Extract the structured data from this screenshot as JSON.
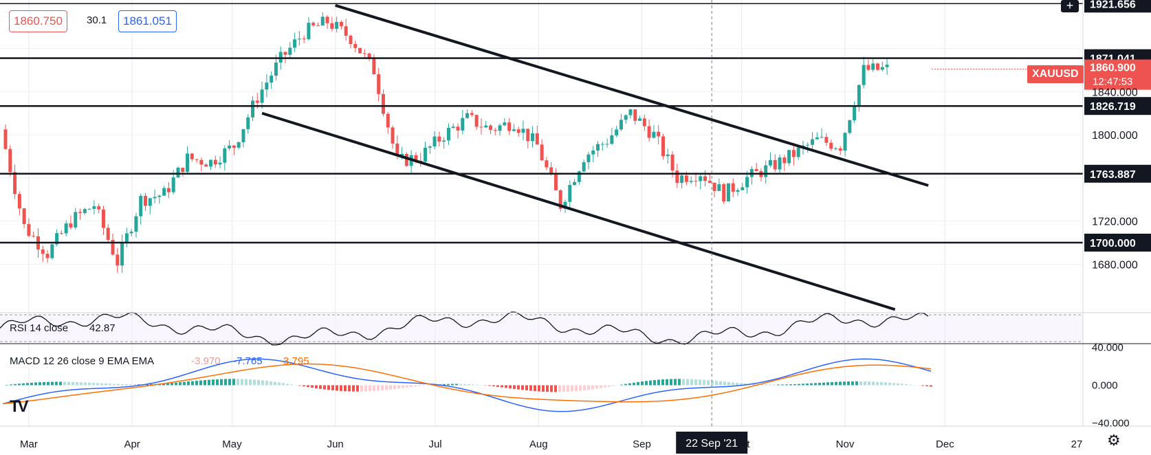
{
  "legend": {
    "bid": "1860.750",
    "spread": "30.1",
    "ask": "1861.051"
  },
  "symbol_badge": "XAUUSD",
  "last_price": "1860.900",
  "countdown": "12:47:53",
  "crosshair_date": "22 Sep '21",
  "rsi_label": "RSI 14 close",
  "rsi_value": "42.87",
  "macd": {
    "label": "MACD 12 26 close 9 EMA EMA",
    "hist": "-3.970",
    "macd": "-7.765",
    "signal": "-3.795"
  },
  "colors": {
    "up": "#26a69a",
    "down": "#ef5350",
    "macd_line": "#2962ff",
    "signal_line": "#ff6d00",
    "hist_up_strong": "#26a69a",
    "hist_up_weak": "#b2dfdb",
    "hist_down_strong": "#ef5350",
    "hist_down_weak": "#ffcdd2"
  },
  "chart_data": {
    "type": "candlestick",
    "symbol": "XAUUSD",
    "x_axis_ticks": [
      "Mar",
      "Apr",
      "May",
      "Jun",
      "Jul",
      "Aug",
      "Sep",
      "Oct",
      "Nov",
      "Dec",
      "27"
    ],
    "y_axis_ticks": [
      "1680.000",
      "1720.000",
      "1800.000",
      "1840.000"
    ],
    "ylim": [
      1635,
      1925
    ],
    "horizontal_levels": [
      "1921.656",
      "1871.041",
      "1826.719",
      "1763.887",
      "1700.000"
    ],
    "level_values": [
      1921.656,
      1871.041,
      1826.719,
      1763.887,
      1700.0
    ],
    "trendlines": [
      {
        "name": "upper channel",
        "from": [
          "2021-06-01",
          1920
        ],
        "to": [
          "2021-11-26",
          1753
        ]
      },
      {
        "name": "lower channel",
        "from": [
          "2021-05-10",
          1820
        ],
        "to": [
          "2021-11-16",
          1638
        ]
      }
    ],
    "ohlc_path": [
      [
        "2021-02-22",
        1805
      ],
      [
        "2021-03-01",
        1715
      ],
      [
        "2021-03-08",
        1690
      ],
      [
        "2021-03-15",
        1720
      ],
      [
        "2021-03-22",
        1735
      ],
      [
        "2021-03-29",
        1682
      ],
      [
        "2021-04-05",
        1740
      ],
      [
        "2021-04-12",
        1745
      ],
      [
        "2021-04-19",
        1778
      ],
      [
        "2021-04-26",
        1775
      ],
      [
        "2021-05-03",
        1790
      ],
      [
        "2021-05-10",
        1835
      ],
      [
        "2021-05-17",
        1870
      ],
      [
        "2021-05-24",
        1895
      ],
      [
        "2021-05-31",
        1905
      ],
      [
        "2021-06-07",
        1890
      ],
      [
        "2021-06-14",
        1860
      ],
      [
        "2021-06-21",
        1775
      ],
      [
        "2021-06-28",
        1780
      ],
      [
        "2021-07-05",
        1800
      ],
      [
        "2021-07-12",
        1815
      ],
      [
        "2021-07-19",
        1805
      ],
      [
        "2021-07-26",
        1812
      ],
      [
        "2021-08-02",
        1790
      ],
      [
        "2021-08-09",
        1735
      ],
      [
        "2021-08-16",
        1780
      ],
      [
        "2021-08-23",
        1795
      ],
      [
        "2021-08-30",
        1820
      ],
      [
        "2021-09-06",
        1800
      ],
      [
        "2021-09-13",
        1760
      ],
      [
        "2021-09-20",
        1765
      ],
      [
        "2021-09-27",
        1745
      ],
      [
        "2021-10-04",
        1760
      ],
      [
        "2021-10-11",
        1770
      ],
      [
        "2021-10-18",
        1782
      ],
      [
        "2021-10-25",
        1795
      ],
      [
        "2021-11-01",
        1790
      ],
      [
        "2021-11-08",
        1860
      ],
      [
        "2021-11-15",
        1861
      ]
    ],
    "rsi": {
      "label": "RSI 14 close",
      "value": 42.87,
      "levels": [
        70,
        30
      ],
      "path": [
        [
          0,
          55
        ],
        [
          10,
          38
        ],
        [
          20,
          44
        ],
        [
          30,
          40
        ],
        [
          40,
          47
        ],
        [
          50,
          58
        ],
        [
          55,
          66
        ],
        [
          62,
          69
        ],
        [
          70,
          50
        ],
        [
          80,
          38
        ],
        [
          90,
          45
        ],
        [
          100,
          54
        ],
        [
          110,
          50
        ],
        [
          118,
          36
        ],
        [
          125,
          52
        ],
        [
          135,
          57
        ],
        [
          145,
          54
        ],
        [
          155,
          46
        ],
        [
          165,
          49
        ],
        [
          175,
          45
        ],
        [
          185,
          52
        ],
        [
          195,
          58
        ],
        [
          200,
          60
        ]
      ]
    },
    "macd": {
      "label": "MACD 12 26 close 9 EMA EMA",
      "ylim": [
        -42,
        42
      ],
      "y_axis_ticks": [
        "40.000",
        "0.000",
        "−40.000"
      ]
    }
  }
}
